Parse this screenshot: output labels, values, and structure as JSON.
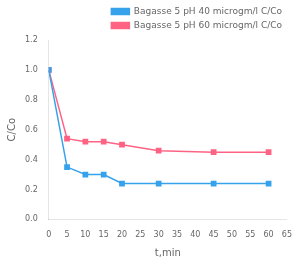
{
  "chart_data": {
    "type": "line",
    "xlabel": "t,min",
    "ylabel": "C/Co",
    "series": [
      {
        "name": "Bagasse 5 pH 40 microgm/l C/Co",
        "x": [
          0,
          5,
          10,
          15,
          20,
          30,
          45,
          60
        ],
        "values": [
          1.0,
          0.35,
          0.3,
          0.3,
          0.24,
          0.24,
          0.24,
          0.24
        ],
        "marker": "square",
        "line_style": "solid"
      },
      {
        "name": "Bagasse 5 pH 60 microgm/l C/Co",
        "x": [
          0,
          5,
          10,
          15,
          20,
          30,
          45,
          60
        ],
        "values": [
          1.0,
          0.54,
          0.52,
          0.52,
          0.5,
          0.46,
          0.45,
          0.45
        ],
        "marker": "square",
        "line_style": "solid"
      }
    ],
    "xlim": [
      0,
      65
    ],
    "xticks": [
      0,
      5,
      10,
      15,
      20,
      25,
      30,
      35,
      40,
      45,
      50,
      55,
      60,
      65
    ],
    "ylim": [
      0,
      1.2
    ],
    "yticks": [
      {
        "value": 0,
        "label": "0.0"
      },
      0.2,
      0.4,
      0.6,
      0.8,
      {
        "value": 1,
        "label": "1.0"
      },
      1.2
    ],
    "grid": false,
    "legend": "upper right"
  }
}
